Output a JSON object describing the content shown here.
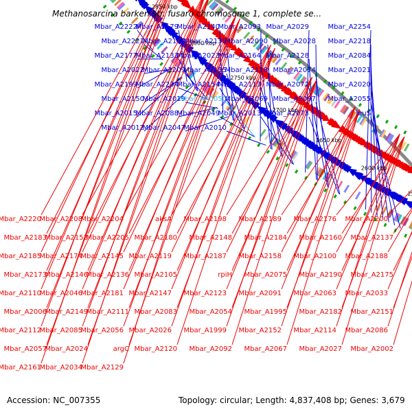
{
  "title": "Methanosarcina barkeri str. fusaro chromosome 1, complete se...",
  "footer": {
    "accession": "Accession: NC_007355",
    "summary": "Topology: circular; Length: 4,837,408 bp; Genes: 3,679"
  },
  "colors": {
    "forward": "#0000dd",
    "reverse": "#ee0000",
    "rna": "#33bbee",
    "backbone": "#888888",
    "tick": "#00aa00"
  },
  "scale_labels": [
    "2900 kbp",
    "2850 kbp",
    "2800 kbp",
    "2750 kbp",
    "2700 kbp",
    "2650 kbp",
    "2600 kbp",
    "2550 kbp"
  ],
  "forward_labels": [
    "Mbar_A2222",
    "Mbar_A2179",
    "Mbar_A2140",
    "Mbar_A2093",
    "Mbar_A2029",
    "Mbar_A2254",
    "Mbar_A2221",
    "Mbar_A2178",
    "Mbar_A2139",
    "Mbar_A2090",
    "Mbar_A2028",
    "Mbar_A2218",
    "Mbar_A2177",
    "Mbar_A2133",
    "Mbar_A2023",
    "Mbar_A2164",
    "Mbar_A2128",
    "Mbar_A2084",
    "Mbar_A2022",
    "Mbar_A2209",
    "Mbar_A2155",
    "Mbar_A2118",
    "Mbar_A2074",
    "Mbar_A2021",
    "Mbar_A2199",
    "Mbar_A2234",
    "Mbar_A2154",
    "Mbar_A2113",
    "Mbar_A2072",
    "Mbar_A2020",
    "Mbar_A2150",
    "Mbar_A2019",
    "Mbar_AR0050",
    "Mbar_A2069",
    "Mbar_A2097",
    "Mbar_A2055",
    "Mbar_A2015",
    "Mbar_A2088",
    "Mbar_A2049",
    "Mbar_A2013",
    "Mbar_A2073",
    "leuS",
    "Mbar_A2012",
    "Mbar_A2047",
    "Mbar_A2010"
  ],
  "reverse_labels": [
    "Mbar_A2220",
    "Mbar_A2208",
    "Mbar_A2204",
    "aksA",
    "Mbar_A2198",
    "Mbar_A2189",
    "Mbar_A2176",
    "Mbar_A2200",
    "Mbar_A2183",
    "Mbar_A2153",
    "Mbar_A2205",
    "Mbar_A2180",
    "Mbar_A2148",
    "Mbar_A2184",
    "Mbar_A2160",
    "Mbar_A2137",
    "Mbar_A2185",
    "Mbar_A2174",
    "Mbar_A2145",
    "Mbar_A2119",
    "Mbar_A2187",
    "Mbar_A2158",
    "Mbar_A2100",
    "Mbar_A2188",
    "Mbar_A2173",
    "Mbar_A2146",
    "Mbar_A2136",
    "Mbar_A2105",
    "rpiH",
    "Mbar_A2075",
    "Mbar_A2190",
    "Mbar_A2175",
    "Mbar_A2110",
    "Mbar_A2046",
    "Mbar_A2181",
    "Mbar_A2147",
    "Mbar_A2123",
    "Mbar_A2091",
    "Mbar_A2063",
    "Mbar_A2033",
    "Mbar_A2006",
    "Mbar_A2149",
    "Mbar_A2111",
    "Mbar_A2083",
    "Mbar_A2054",
    "Mbar_A1995",
    "Mbar_A2182",
    "Mbar_A2151",
    "Mbar_A2112",
    "Mbar_A2085",
    "Mbar_A2056",
    "Mbar_A2026",
    "Mbar_A1999",
    "Mbar_A2152",
    "Mbar_A2114",
    "Mbar_A2086",
    "Mbar_A2057",
    "Mbar_A2024",
    "argC",
    "Mbar_A2120",
    "Mbar_A2092",
    "Mbar_A2067",
    "Mbar_A2027",
    "Mbar_A2002",
    "Mbar_A2161",
    "Mbar_A2034",
    "Mbar_A2129"
  ]
}
